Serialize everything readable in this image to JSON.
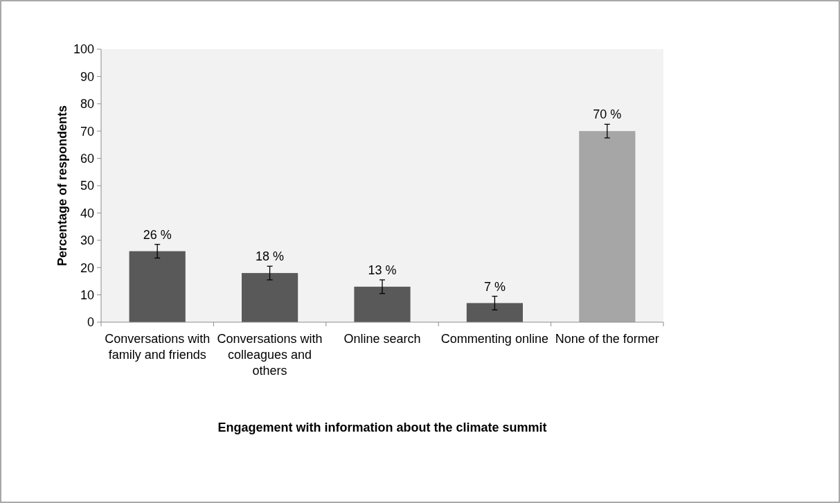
{
  "chart_data": {
    "type": "bar",
    "xlabel": "Engagement with information about the climate summit",
    "ylabel": "Percentage of respondents",
    "categories": [
      "Conversations with family and friends",
      "Conversations with colleagues and others",
      "Online search",
      "Commenting online",
      "None of the former"
    ],
    "values": [
      26,
      18,
      13,
      7,
      70
    ],
    "colors": [
      "#595959",
      "#595959",
      "#595959",
      "#595959",
      "#a6a6a6"
    ],
    "errors": [
      2.5,
      2.5,
      2.5,
      2.5,
      2.5
    ],
    "value_labels": [
      "26 %",
      "18 %",
      "13 %",
      "7 %",
      "70 %"
    ],
    "ylim": [
      0,
      100
    ],
    "yticks": [
      0,
      10,
      20,
      30,
      40,
      50,
      60,
      70,
      80,
      90,
      100
    ],
    "grid": false
  }
}
